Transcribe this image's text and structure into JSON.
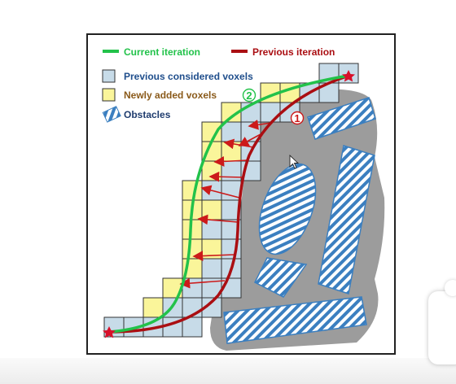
{
  "legend": {
    "current_iteration": "Current iteration",
    "previous_iteration": "Previous iteration",
    "previous_voxels": "Previous considered voxels",
    "new_voxels": "Newly added voxels",
    "obstacles": "Obstacles"
  },
  "markers": {
    "marker_1": "1",
    "marker_2": "2"
  },
  "colors": {
    "current_path": "#22c24a",
    "previous_path": "#aa0e12",
    "previous_voxel_fill": "#c7dbe8",
    "new_voxel_fill": "#faf59a",
    "obstacle_stripe": "#3b7fc0",
    "inflated_region": "#9c9c9c"
  }
}
